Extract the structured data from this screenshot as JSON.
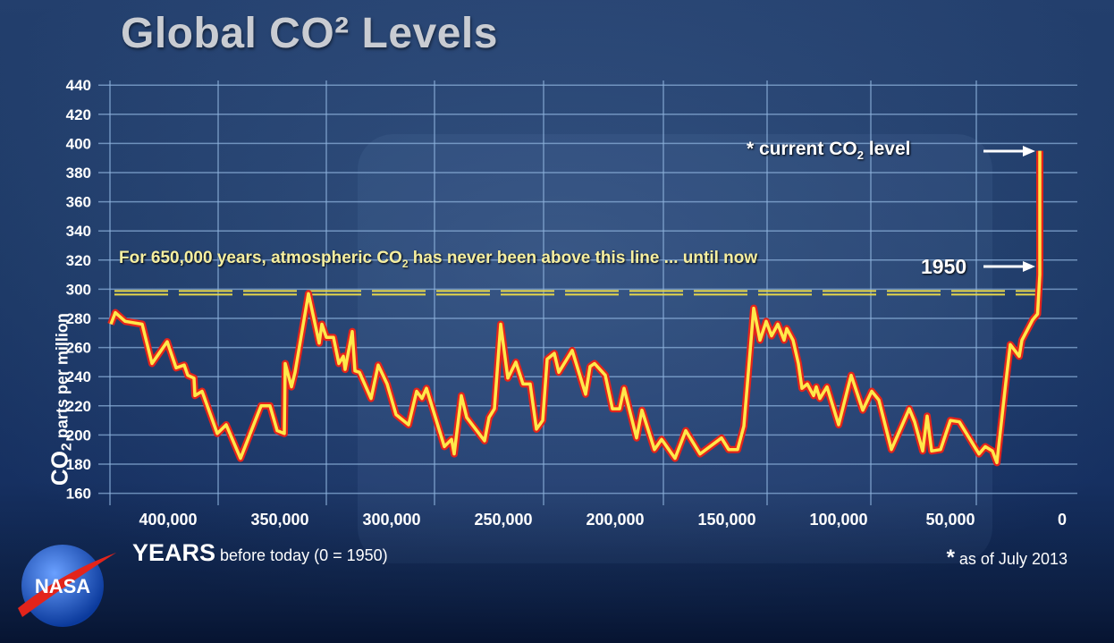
{
  "title": "Global CO² Levels",
  "y_axis_label": {
    "main": "CO",
    "sub": "2",
    "rest": " parts per million"
  },
  "x_axis_label": {
    "main": "YEARS",
    "rest": " before today (0 = 1950)"
  },
  "footnote": {
    "star": "*",
    "text": " as of July 2013"
  },
  "annotations": {
    "threshold_text": {
      "pre": "For 650,000 years, atmospheric CO",
      "sub": "2",
      "post": " has never been above this line ... until now"
    },
    "current_level": {
      "pre": "* current CO",
      "sub": "2",
      "post": " level"
    },
    "year_1950": "1950"
  },
  "logo": "NASA",
  "colors": {
    "line_core": "#ffe94a",
    "line_outline": "#e3241b",
    "threshold": "#e8d84a",
    "grid": "#8fb4de",
    "background": "#1b3764"
  },
  "chart_data": {
    "type": "line",
    "title": "Global CO² Levels",
    "xlabel": "YEARS before today (0 = 1950)",
    "ylabel": "CO2 parts per million",
    "xlim": [
      420000,
      -63
    ],
    "ylim": [
      160,
      440
    ],
    "x_reversed": true,
    "grid": true,
    "y_ticks": [
      160,
      180,
      200,
      220,
      240,
      260,
      280,
      300,
      320,
      340,
      360,
      380,
      400,
      420,
      440
    ],
    "x_ticks": [
      400000,
      350000,
      300000,
      250000,
      200000,
      150000,
      100000,
      50000,
      0
    ],
    "x_tick_labels": [
      "400,000",
      "350,000",
      "300,000",
      "250,000",
      "200,000",
      "150,000",
      "100,000",
      "50,000",
      "0"
    ],
    "threshold_ppm": 300,
    "current_level_ppm": 395,
    "level_1950_ppm": 310,
    "series": [
      {
        "points": [
          [
            415600,
            276
          ],
          [
            413600,
            284
          ],
          [
            409200,
            278
          ],
          [
            401600,
            276
          ],
          [
            397200,
            249
          ],
          [
            390400,
            264
          ],
          [
            386400,
            246
          ],
          [
            382800,
            248
          ],
          [
            381200,
            241
          ],
          [
            378400,
            239
          ],
          [
            378000,
            227
          ],
          [
            374800,
            230
          ],
          [
            368000,
            201
          ],
          [
            364000,
            207
          ],
          [
            357600,
            184
          ],
          [
            348400,
            220
          ],
          [
            344400,
            220
          ],
          [
            341200,
            203
          ],
          [
            338000,
            201
          ],
          [
            337600,
            249
          ],
          [
            334800,
            233
          ],
          [
            333200,
            243
          ],
          [
            327200,
            297
          ],
          [
            322400,
            263
          ],
          [
            321200,
            276
          ],
          [
            319200,
            267
          ],
          [
            316000,
            267
          ],
          [
            313600,
            249
          ],
          [
            311600,
            254
          ],
          [
            310800,
            245
          ],
          [
            307600,
            271
          ],
          [
            306400,
            244
          ],
          [
            304400,
            243
          ],
          [
            299200,
            225
          ],
          [
            296000,
            248
          ],
          [
            292000,
            235
          ],
          [
            288000,
            214
          ],
          [
            282400,
            207
          ],
          [
            278800,
            230
          ],
          [
            276400,
            225
          ],
          [
            274400,
            232
          ],
          [
            266400,
            192
          ],
          [
            263200,
            197
          ],
          [
            262000,
            187
          ],
          [
            258800,
            227
          ],
          [
            256400,
            212
          ],
          [
            248400,
            196
          ],
          [
            246400,
            212
          ],
          [
            244000,
            218
          ],
          [
            241200,
            276
          ],
          [
            238000,
            239
          ],
          [
            234400,
            250
          ],
          [
            231200,
            235
          ],
          [
            228000,
            235
          ],
          [
            225200,
            204
          ],
          [
            222400,
            210
          ],
          [
            220400,
            252
          ],
          [
            217200,
            256
          ],
          [
            215200,
            243
          ],
          [
            209200,
            258
          ],
          [
            203200,
            228
          ],
          [
            201200,
            247
          ],
          [
            199200,
            249
          ],
          [
            194400,
            241
          ],
          [
            191200,
            218
          ],
          [
            188000,
            218
          ],
          [
            186000,
            232
          ],
          [
            180400,
            198
          ],
          [
            178000,
            217
          ],
          [
            172400,
            190
          ],
          [
            169200,
            197
          ],
          [
            163200,
            184
          ],
          [
            158400,
            203
          ],
          [
            152000,
            187
          ],
          [
            142400,
            198
          ],
          [
            139200,
            190
          ],
          [
            135200,
            190
          ],
          [
            132400,
            206
          ],
          [
            128000,
            287
          ],
          [
            125200,
            265
          ],
          [
            122400,
            278
          ],
          [
            120000,
            268
          ],
          [
            117200,
            276
          ],
          [
            114400,
            265
          ],
          [
            113200,
            273
          ],
          [
            110400,
            265
          ],
          [
            108000,
            249
          ],
          [
            106400,
            232
          ],
          [
            104000,
            235
          ],
          [
            101200,
            227
          ],
          [
            100000,
            233
          ],
          [
            98400,
            225
          ],
          [
            95200,
            233
          ],
          [
            90000,
            207
          ],
          [
            84400,
            241
          ],
          [
            79200,
            217
          ],
          [
            75200,
            230
          ],
          [
            72000,
            224
          ],
          [
            66400,
            190
          ],
          [
            58400,
            218
          ],
          [
            56000,
            209
          ],
          [
            52400,
            189
          ],
          [
            50400,
            213
          ],
          [
            48400,
            189
          ],
          [
            44400,
            190
          ],
          [
            40000,
            210
          ],
          [
            36000,
            209
          ],
          [
            27200,
            187
          ],
          [
            24400,
            192
          ],
          [
            21200,
            189
          ],
          [
            19200,
            181
          ],
          [
            15200,
            236
          ],
          [
            13200,
            262
          ],
          [
            9200,
            254
          ],
          [
            8000,
            265
          ],
          [
            3200,
            279
          ],
          [
            1000,
            283
          ],
          [
            0,
            310
          ],
          [
            -63,
            395
          ]
        ]
      }
    ]
  }
}
